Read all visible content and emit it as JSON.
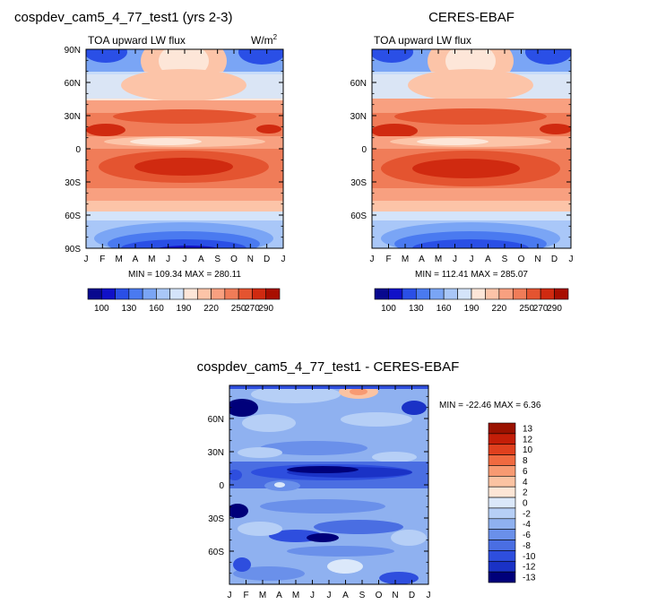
{
  "chart_data": [
    {
      "type": "heatmap",
      "title": "cospdev_cam5_4_77_test1 (yrs 2-3)",
      "subtitle_left": "TOA upward LW flux",
      "units": "W/m",
      "units_sup": "2",
      "x_ticks": [
        "J",
        "F",
        "M",
        "A",
        "M",
        "J",
        "J",
        "A",
        "S",
        "O",
        "N",
        "D",
        "J"
      ],
      "y_ticks": [
        "90N",
        "60N",
        "30N",
        "0",
        "30S",
        "60S",
        "90S"
      ],
      "stats": "MIN = 109.34 MAX = 280.11",
      "colorbar_labels": [
        "100",
        "130",
        "160",
        "190",
        "220",
        "250",
        "270",
        "290"
      ]
    },
    {
      "type": "heatmap",
      "title": "CERES-EBAF",
      "subtitle_left": "TOA upward LW flux",
      "x_ticks": [
        "J",
        "F",
        "M",
        "A",
        "M",
        "J",
        "J",
        "A",
        "S",
        "O",
        "N",
        "D",
        "J"
      ],
      "y_ticks": [
        "60N",
        "30N",
        "0",
        "30S",
        "60S"
      ],
      "stats": "MIN = 112.41 MAX = 285.07",
      "colorbar_labels": [
        "100",
        "130",
        "160",
        "190",
        "220",
        "250",
        "270",
        "290"
      ]
    },
    {
      "type": "heatmap",
      "title": "cospdev_cam5_4_77_test1 - CERES-EBAF",
      "x_ticks": [
        "J",
        "F",
        "M",
        "A",
        "M",
        "J",
        "J",
        "A",
        "S",
        "O",
        "N",
        "D",
        "J"
      ],
      "y_ticks": [
        "60N",
        "30N",
        "0",
        "30S",
        "60S"
      ],
      "stats": "MIN = -22.46 MAX =    6.36",
      "colorbar_labels": [
        "13",
        "12",
        "10",
        "8",
        "6",
        "4",
        "2",
        "0",
        "-2",
        "-4",
        "-6",
        "-8",
        "-10",
        "-12",
        "-13"
      ]
    }
  ],
  "colors": {
    "abs_palette": [
      "#08088e",
      "#1010c8",
      "#2a4fe6",
      "#4a7af0",
      "#7aa5f5",
      "#a9c7f8",
      "#d4e4fa",
      "#fde6d8",
      "#fcc4a8",
      "#f8a080",
      "#f07c58",
      "#e45430",
      "#d02a10",
      "#a80e00"
    ],
    "diff_palette": [
      "#9a1200",
      "#c41e08",
      "#e0401e",
      "#f06a40",
      "#f79a72",
      "#fbc3a2",
      "#fde6d6",
      "#dbe8fa",
      "#b6cff6",
      "#8fb1f0",
      "#6a90ea",
      "#4a6ee2",
      "#2e4ede",
      "#1a32c6",
      "#00007a"
    ]
  }
}
